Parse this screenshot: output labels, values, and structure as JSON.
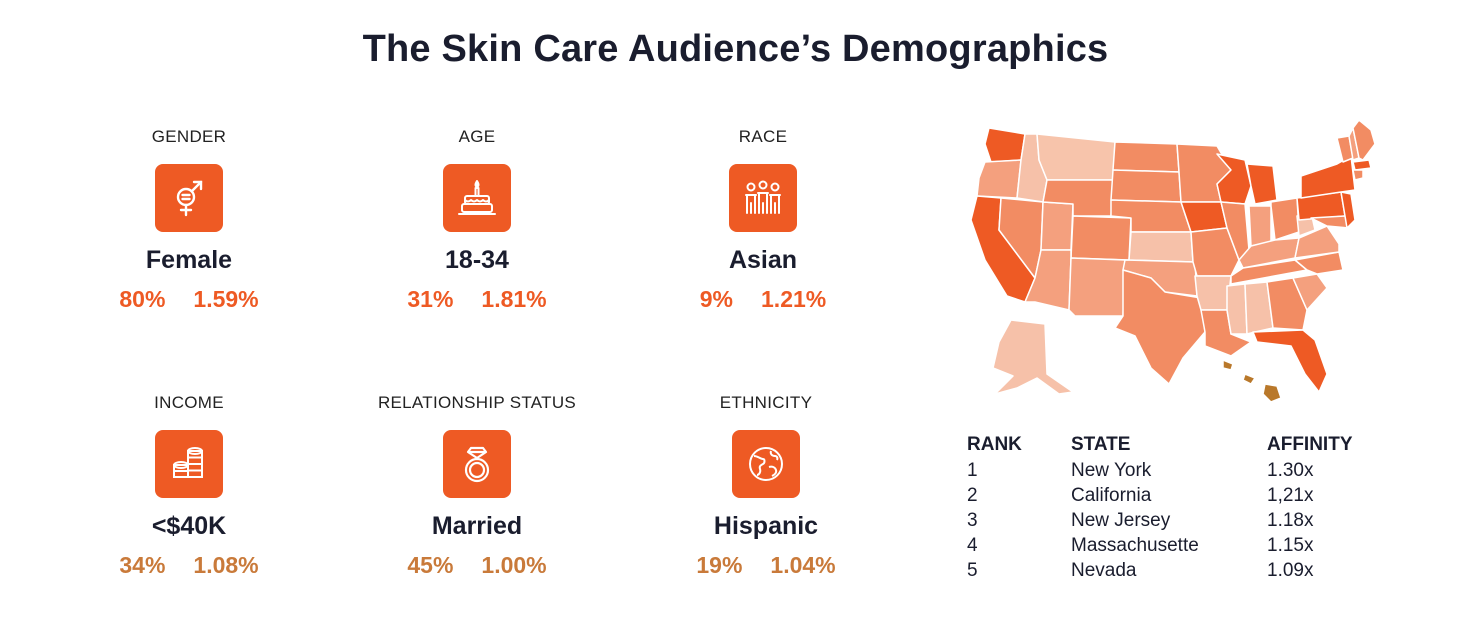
{
  "title": "The Skin Care Audience’s Demographics",
  "stats": [
    {
      "label": "GENDER",
      "icon": "gender-icon",
      "value": "Female",
      "pct": "80%",
      "affinity": "1.59%"
    },
    {
      "label": "AGE",
      "icon": "birthday-cake-icon",
      "value": "18-34",
      "pct": "31%",
      "affinity": "1.81%"
    },
    {
      "label": "RACE",
      "icon": "people-group-icon",
      "value": "Asian",
      "pct": "9%",
      "affinity": "1.21%"
    },
    {
      "label": "INCOME",
      "icon": "coins-icon",
      "value": "<$40K",
      "pct": "34%",
      "affinity": "1.08%"
    },
    {
      "label": "RELATIONSHIP STATUS",
      "icon": "ring-icon",
      "value": "Married",
      "pct": "45%",
      "affinity": "1.00%"
    },
    {
      "label": "ETHNICITY",
      "icon": "globe-icon",
      "value": "Hispanic",
      "pct": "19%",
      "affinity": "1.04%"
    }
  ],
  "colors": {
    "accent": "#ee5a24",
    "accent_muted": "#c97a3a",
    "text": "#1a1d2e"
  },
  "table": {
    "headers": {
      "rank": "RANK",
      "state": "STATE",
      "affinity": "AFFINITY"
    },
    "rows": [
      {
        "rank": "1",
        "state": "New York",
        "affinity": "1.30x"
      },
      {
        "rank": "2",
        "state": "California",
        "affinity": "1,21x"
      },
      {
        "rank": "3",
        "state": "New Jersey",
        "affinity": "1.18x"
      },
      {
        "rank": "4",
        "state": "Massachusette",
        "affinity": "1.15x"
      },
      {
        "rank": "5",
        "state": "Nevada",
        "affinity": "1.09x"
      }
    ]
  }
}
